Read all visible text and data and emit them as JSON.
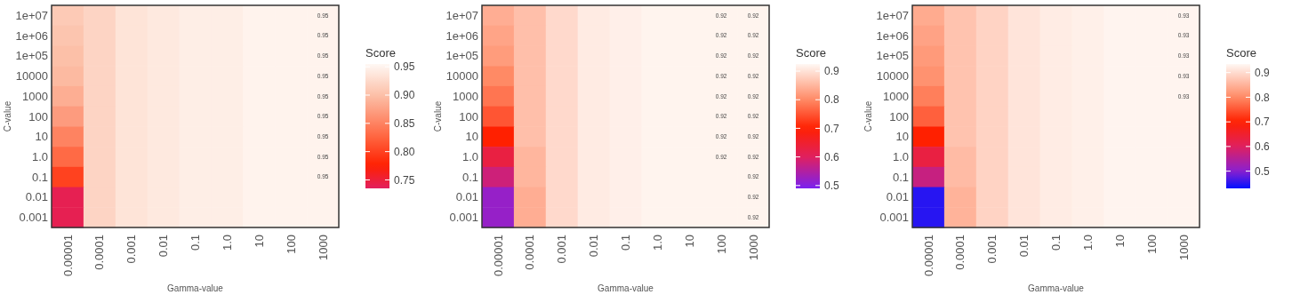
{
  "chart_data": [
    {
      "type": "heatmap",
      "xlabel": "Gamma-value",
      "ylabel": "C-value",
      "clabel": "Score",
      "categories": [
        "0.00001",
        "0.0001",
        "0.001",
        "0.01",
        "0.1",
        "1.0",
        "10",
        "100",
        "1000"
      ],
      "y_categories": [
        "1e+07",
        "1e+06",
        "1e+05",
        "10000",
        "1000",
        "100",
        "10",
        "1.0",
        "0.1",
        "0.01",
        "0.001"
      ],
      "cells": [
        [
          0.91,
          0.92,
          0.935,
          0.94,
          0.945,
          0.945,
          0.95,
          0.95,
          0.95
        ],
        [
          0.905,
          0.92,
          0.935,
          0.94,
          0.945,
          0.945,
          0.95,
          0.95,
          0.95
        ],
        [
          0.9,
          0.92,
          0.935,
          0.94,
          0.945,
          0.945,
          0.95,
          0.95,
          0.95
        ],
        [
          0.895,
          0.92,
          0.935,
          0.94,
          0.945,
          0.945,
          0.95,
          0.95,
          0.95
        ],
        [
          0.885,
          0.92,
          0.935,
          0.94,
          0.945,
          0.945,
          0.95,
          0.95,
          0.95
        ],
        [
          0.87,
          0.92,
          0.935,
          0.94,
          0.945,
          0.945,
          0.95,
          0.95,
          0.95
        ],
        [
          0.85,
          0.92,
          0.935,
          0.94,
          0.945,
          0.945,
          0.95,
          0.95,
          0.95
        ],
        [
          0.83,
          0.92,
          0.935,
          0.94,
          0.945,
          0.945,
          0.95,
          0.95,
          0.95
        ],
        [
          0.8,
          0.92,
          0.935,
          0.94,
          0.945,
          0.945,
          0.95,
          0.95,
          0.95
        ],
        [
          0.74,
          0.92,
          0.935,
          0.94,
          0.945,
          0.945,
          0.95,
          0.95,
          0.95
        ],
        [
          0.74,
          0.92,
          0.935,
          0.94,
          0.945,
          0.945,
          0.95,
          0.95,
          0.95
        ]
      ],
      "cell_labels": [
        [
          null,
          null,
          null,
          null,
          null,
          null,
          null,
          null,
          "0.95"
        ],
        [
          null,
          null,
          null,
          null,
          null,
          null,
          null,
          null,
          "0.95"
        ],
        [
          null,
          null,
          null,
          null,
          null,
          null,
          null,
          null,
          "0.95"
        ],
        [
          null,
          null,
          null,
          null,
          null,
          null,
          null,
          null,
          "0.95"
        ],
        [
          null,
          null,
          null,
          null,
          null,
          null,
          null,
          null,
          "0.95"
        ],
        [
          null,
          null,
          null,
          null,
          null,
          null,
          null,
          null,
          "0.95"
        ],
        [
          null,
          null,
          null,
          null,
          null,
          null,
          null,
          null,
          "0.95"
        ],
        [
          null,
          null,
          null,
          null,
          null,
          null,
          null,
          null,
          "0.95"
        ],
        [
          null,
          null,
          null,
          null,
          null,
          null,
          null,
          null,
          "0.95"
        ],
        [
          null,
          null,
          null,
          null,
          null,
          null,
          null,
          null,
          null
        ],
        [
          null,
          null,
          null,
          null,
          null,
          null,
          null,
          null,
          null
        ]
      ],
      "clim": [
        0.735,
        0.955
      ],
      "cticks": [
        {
          "value": 0.75,
          "label": "0.75"
        },
        {
          "value": 0.8,
          "label": "0.80"
        },
        {
          "value": 0.85,
          "label": "0.85"
        },
        {
          "value": 0.9,
          "label": "0.90"
        },
        {
          "value": 0.95,
          "label": "0.95"
        }
      ]
    },
    {
      "type": "heatmap",
      "xlabel": "Gamma-value",
      "ylabel": "C-value",
      "clabel": "Score",
      "categories": [
        "0.00001",
        "0.0001",
        "0.001",
        "0.01",
        "0.1",
        "1.0",
        "10",
        "100",
        "1000"
      ],
      "y_categories": [
        "1e+07",
        "1e+06",
        "1e+05",
        "10000",
        "1000",
        "100",
        "10",
        "1.0",
        "0.1",
        "0.01",
        "0.001"
      ],
      "cells": [
        [
          0.84,
          0.86,
          0.89,
          0.91,
          0.915,
          0.92,
          0.92,
          0.92,
          0.92
        ],
        [
          0.83,
          0.86,
          0.89,
          0.91,
          0.915,
          0.92,
          0.92,
          0.92,
          0.92
        ],
        [
          0.82,
          0.86,
          0.89,
          0.91,
          0.915,
          0.92,
          0.92,
          0.92,
          0.92
        ],
        [
          0.8,
          0.86,
          0.89,
          0.91,
          0.915,
          0.92,
          0.92,
          0.92,
          0.92
        ],
        [
          0.78,
          0.86,
          0.89,
          0.91,
          0.915,
          0.92,
          0.92,
          0.92,
          0.92
        ],
        [
          0.75,
          0.86,
          0.89,
          0.91,
          0.915,
          0.92,
          0.92,
          0.92,
          0.92
        ],
        [
          0.7,
          0.86,
          0.89,
          0.91,
          0.915,
          0.92,
          0.92,
          0.92,
          0.92
        ],
        [
          0.63,
          0.85,
          0.89,
          0.91,
          0.915,
          0.92,
          0.92,
          0.92,
          0.92
        ],
        [
          0.58,
          0.85,
          0.89,
          0.91,
          0.915,
          0.92,
          0.92,
          0.92,
          0.92
        ],
        [
          0.52,
          0.84,
          0.89,
          0.91,
          0.915,
          0.92,
          0.92,
          0.92,
          0.92
        ],
        [
          0.52,
          0.84,
          0.89,
          0.91,
          0.915,
          0.92,
          0.92,
          0.92,
          0.92
        ]
      ],
      "cell_labels": [
        [
          null,
          null,
          null,
          null,
          null,
          null,
          null,
          "0.92",
          "0.92"
        ],
        [
          null,
          null,
          null,
          null,
          null,
          null,
          null,
          "0.92",
          "0.92"
        ],
        [
          null,
          null,
          null,
          null,
          null,
          null,
          null,
          "0.92",
          "0.92"
        ],
        [
          null,
          null,
          null,
          null,
          null,
          null,
          null,
          "0.92",
          "0.92"
        ],
        [
          null,
          null,
          null,
          null,
          null,
          null,
          null,
          "0.92",
          "0.92"
        ],
        [
          null,
          null,
          null,
          null,
          null,
          null,
          null,
          "0.92",
          "0.92"
        ],
        [
          null,
          null,
          null,
          null,
          null,
          null,
          null,
          "0.92",
          "0.92"
        ],
        [
          null,
          null,
          null,
          null,
          null,
          null,
          null,
          "0.92",
          "0.92"
        ],
        [
          null,
          null,
          null,
          null,
          null,
          null,
          null,
          null,
          "0.92"
        ],
        [
          null,
          null,
          null,
          null,
          null,
          null,
          null,
          null,
          "0.92"
        ],
        [
          null,
          null,
          null,
          null,
          null,
          null,
          null,
          null,
          "0.92"
        ]
      ],
      "clim": [
        0.49,
        0.925
      ],
      "cticks": [
        0.5,
        0.6,
        0.7,
        0.8,
        0.9
      ]
    },
    {
      "type": "heatmap",
      "xlabel": "Gamma-value",
      "ylabel": "C-value",
      "clabel": "Score",
      "categories": [
        "0.00001",
        "0.0001",
        "0.001",
        "0.01",
        "0.1",
        "1.0",
        "10",
        "100",
        "1000"
      ],
      "y_categories": [
        "1e+07",
        "1e+06",
        "1e+05",
        "10000",
        "1000",
        "100",
        "10",
        "1.0",
        "0.1",
        "0.01",
        "0.001"
      ],
      "cells": [
        [
          0.84,
          0.87,
          0.89,
          0.91,
          0.92,
          0.925,
          0.93,
          0.93,
          0.93
        ],
        [
          0.83,
          0.87,
          0.89,
          0.91,
          0.92,
          0.925,
          0.93,
          0.93,
          0.93
        ],
        [
          0.82,
          0.87,
          0.89,
          0.91,
          0.92,
          0.925,
          0.93,
          0.93,
          0.93
        ],
        [
          0.81,
          0.87,
          0.89,
          0.91,
          0.92,
          0.925,
          0.93,
          0.93,
          0.93
        ],
        [
          0.79,
          0.87,
          0.89,
          0.91,
          0.92,
          0.925,
          0.93,
          0.93,
          0.93
        ],
        [
          0.76,
          0.87,
          0.89,
          0.91,
          0.92,
          0.925,
          0.93,
          0.93,
          0.93
        ],
        [
          0.7,
          0.87,
          0.89,
          0.91,
          0.92,
          0.925,
          0.93,
          0.93,
          0.93
        ],
        [
          0.63,
          0.86,
          0.89,
          0.91,
          0.92,
          0.925,
          0.93,
          0.93,
          0.93
        ],
        [
          0.57,
          0.86,
          0.89,
          0.91,
          0.92,
          0.925,
          0.93,
          0.93,
          0.93
        ],
        [
          0.45,
          0.85,
          0.89,
          0.91,
          0.92,
          0.925,
          0.93,
          0.93,
          0.93
        ],
        [
          0.45,
          0.85,
          0.89,
          0.91,
          0.92,
          0.925,
          0.93,
          0.93,
          0.93
        ]
      ],
      "cell_labels": [
        [
          null,
          null,
          null,
          null,
          null,
          null,
          null,
          null,
          "0.93"
        ],
        [
          null,
          null,
          null,
          null,
          null,
          null,
          null,
          null,
          "0.93"
        ],
        [
          null,
          null,
          null,
          null,
          null,
          null,
          null,
          null,
          "0.93"
        ],
        [
          null,
          null,
          null,
          null,
          null,
          null,
          null,
          null,
          "0.93"
        ],
        [
          null,
          null,
          null,
          null,
          null,
          null,
          null,
          null,
          "0.93"
        ],
        [
          null,
          null,
          null,
          null,
          null,
          null,
          null,
          null,
          null
        ],
        [
          null,
          null,
          null,
          null,
          null,
          null,
          null,
          null,
          null
        ],
        [
          null,
          null,
          null,
          null,
          null,
          null,
          null,
          null,
          null
        ],
        [
          null,
          null,
          null,
          null,
          null,
          null,
          null,
          null,
          null
        ],
        [
          null,
          null,
          null,
          null,
          null,
          null,
          null,
          null,
          null
        ],
        [
          null,
          null,
          null,
          null,
          null,
          null,
          null,
          null,
          null
        ]
      ],
      "clim": [
        0.43,
        0.935
      ],
      "cticks": [
        0.5,
        0.6,
        0.7,
        0.8,
        0.9
      ]
    }
  ]
}
